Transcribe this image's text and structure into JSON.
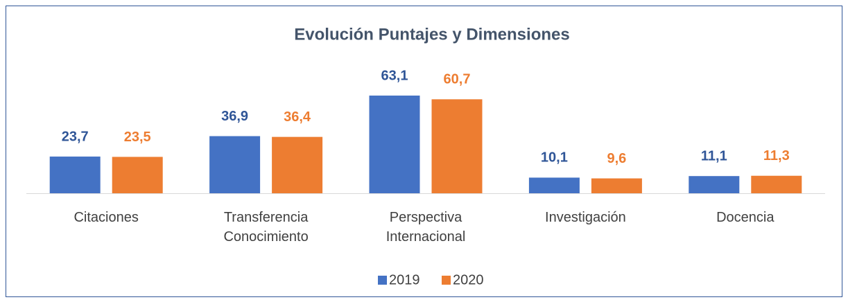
{
  "chart_data": {
    "type": "bar",
    "title": "Evolución Puntajes y Dimensiones",
    "categories": [
      "Citaciones",
      "Transferencia Conocimiento",
      "Perspectiva Internacional",
      "Investigación",
      "Docencia"
    ],
    "series": [
      {
        "name": "2019",
        "color": "#4472c4",
        "values": [
          23.7,
          36.9,
          63.1,
          10.1,
          11.1
        ],
        "value_labels": [
          "23,7",
          "36,9",
          "63,1",
          "10,1",
          "11,1"
        ],
        "label_color": "#2f5597"
      },
      {
        "name": "2020",
        "color": "#ed7d31",
        "values": [
          23.5,
          36.4,
          60.7,
          9.6,
          11.3
        ],
        "value_labels": [
          "23,5",
          "36,4",
          "60,7",
          "9,6",
          "11,3"
        ],
        "label_color": "#ed7d31"
      }
    ],
    "legend": "bottom"
  }
}
